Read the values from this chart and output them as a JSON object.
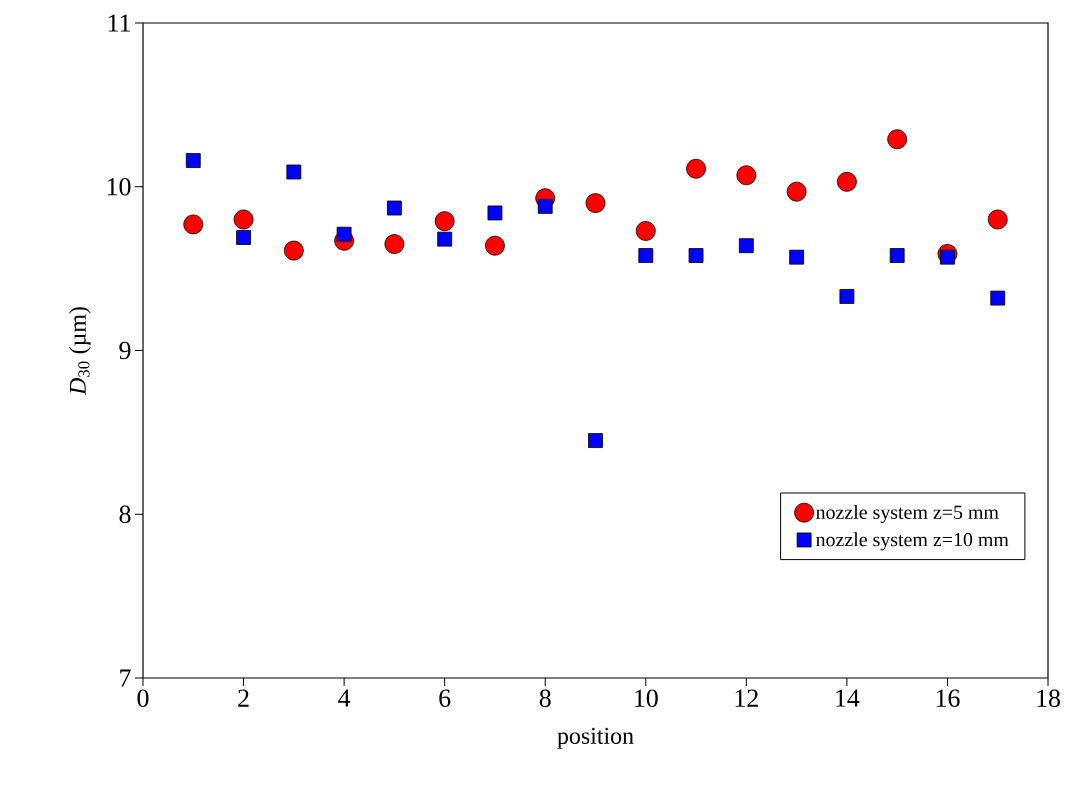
{
  "chart_data": {
    "type": "scatter",
    "xlabel": "position",
    "ylabel": "*D*$_{30}$ (µm)",
    "x": [
      1,
      2,
      3,
      4,
      5,
      6,
      7,
      8,
      9,
      10,
      11,
      12,
      13,
      14,
      15,
      16,
      17
    ],
    "series": [
      {
        "name": "nozzle system z=5 mm",
        "color": "#ff0000",
        "marker": "circle",
        "values": [
          9.77,
          9.8,
          9.61,
          9.67,
          9.65,
          9.79,
          9.64,
          9.93,
          9.9,
          9.73,
          10.11,
          10.07,
          9.97,
          10.03,
          10.29,
          9.59,
          9.8
        ]
      },
      {
        "name": "nozzle system z=10 mm",
        "color": "#0000ff",
        "marker": "square",
        "values": [
          10.16,
          9.69,
          10.09,
          9.71,
          9.87,
          9.68,
          9.84,
          9.88,
          8.45,
          9.58,
          9.58,
          9.64,
          9.57,
          9.33,
          9.58,
          9.57,
          9.32
        ]
      }
    ],
    "xlim": [
      0,
      18
    ],
    "ylim": [
      7,
      11
    ],
    "xticks": [
      0,
      2,
      4,
      6,
      8,
      10,
      12,
      14,
      16,
      18
    ],
    "yticks": [
      7,
      8,
      9,
      10,
      11
    ],
    "grid": false,
    "legend": "bottom right"
  }
}
